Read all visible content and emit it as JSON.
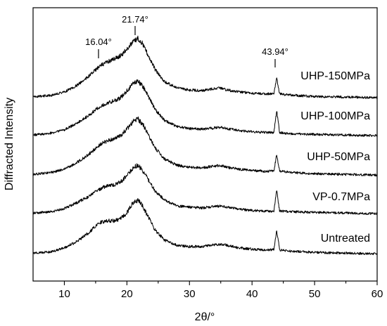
{
  "chart_data": {
    "type": "line",
    "title": "",
    "xlabel": "2θ/°",
    "ylabel": "Diffracted Intensity",
    "xlim": [
      5,
      60
    ],
    "xticks": [
      10,
      20,
      30,
      40,
      50,
      60
    ],
    "xtick_labels": [
      "10",
      "20",
      "30",
      "40",
      "50",
      "60"
    ],
    "yticks_shown": false,
    "grid": false,
    "legend": "labels placed at right end of each trace",
    "series_style": "stacked with vertical offset",
    "series": [
      {
        "name": "UHP-150MPa",
        "x": [
          5,
          8,
          10,
          12,
          14,
          15,
          16,
          17,
          18,
          19,
          20,
          21,
          21.74,
          22.5,
          23.5,
          24.5,
          26,
          28,
          30,
          32,
          34,
          35,
          36,
          38,
          40,
          42,
          43.5,
          43.94,
          44.4,
          46,
          50,
          55,
          60
        ],
        "y": [
          0.02,
          0.05,
          0.1,
          0.2,
          0.35,
          0.44,
          0.52,
          0.57,
          0.61,
          0.66,
          0.76,
          0.88,
          0.93,
          0.85,
          0.65,
          0.45,
          0.26,
          0.16,
          0.13,
          0.12,
          0.15,
          0.16,
          0.13,
          0.1,
          0.08,
          0.07,
          0.07,
          0.33,
          0.07,
          0.05,
          0.03,
          0.02,
          0.01
        ]
      },
      {
        "name": "UHP-100MPa",
        "x": [
          5,
          8,
          10,
          12,
          14,
          15,
          16,
          17,
          18,
          19,
          20,
          21,
          21.74,
          22.5,
          23.5,
          24.5,
          26,
          28,
          30,
          32,
          34,
          35,
          36,
          38,
          40,
          42,
          43.5,
          43.94,
          44.4,
          46,
          50,
          55,
          60
        ],
        "y": [
          0.02,
          0.05,
          0.1,
          0.2,
          0.33,
          0.41,
          0.48,
          0.52,
          0.55,
          0.6,
          0.7,
          0.82,
          0.86,
          0.78,
          0.6,
          0.42,
          0.25,
          0.15,
          0.12,
          0.11,
          0.13,
          0.14,
          0.12,
          0.09,
          0.07,
          0.06,
          0.06,
          0.4,
          0.06,
          0.04,
          0.03,
          0.02,
          0.01
        ]
      },
      {
        "name": "UHP-50MPa",
        "x": [
          5,
          8,
          10,
          12,
          14,
          15,
          16,
          17,
          18,
          19,
          20,
          21,
          21.74,
          22.5,
          23.5,
          24.5,
          26,
          28,
          30,
          32,
          34,
          35,
          36,
          38,
          40,
          42,
          43.5,
          43.94,
          44.4,
          46,
          50,
          55,
          60
        ],
        "y": [
          0.02,
          0.05,
          0.1,
          0.2,
          0.34,
          0.42,
          0.5,
          0.54,
          0.57,
          0.62,
          0.72,
          0.84,
          0.88,
          0.8,
          0.62,
          0.43,
          0.26,
          0.16,
          0.13,
          0.12,
          0.15,
          0.16,
          0.13,
          0.1,
          0.08,
          0.07,
          0.07,
          0.33,
          0.07,
          0.05,
          0.03,
          0.02,
          0.01
        ]
      },
      {
        "name": "VP-0.7MPa",
        "x": [
          5,
          8,
          10,
          12,
          14,
          15,
          16,
          17,
          18,
          19,
          20,
          21,
          21.74,
          22.5,
          23.5,
          24.5,
          26,
          28,
          30,
          32,
          34,
          35,
          36,
          38,
          40,
          42,
          43.5,
          43.94,
          44.4,
          46,
          50,
          55,
          60
        ],
        "y": [
          0.02,
          0.04,
          0.09,
          0.18,
          0.28,
          0.35,
          0.41,
          0.44,
          0.46,
          0.5,
          0.6,
          0.72,
          0.76,
          0.68,
          0.52,
          0.36,
          0.22,
          0.13,
          0.11,
          0.1,
          0.12,
          0.13,
          0.11,
          0.08,
          0.06,
          0.05,
          0.05,
          0.38,
          0.05,
          0.04,
          0.03,
          0.02,
          0.01
        ]
      },
      {
        "name": "Untreated",
        "x": [
          5,
          8,
          10,
          12,
          14,
          15,
          16,
          17,
          18,
          19,
          20,
          21,
          21.74,
          22.5,
          23.5,
          24.5,
          26,
          28,
          30,
          32,
          34,
          35,
          36,
          38,
          40,
          42,
          43.5,
          43.94,
          44.4,
          46,
          50,
          55,
          60
        ],
        "y": [
          0.02,
          0.04,
          0.1,
          0.2,
          0.34,
          0.44,
          0.5,
          0.52,
          0.52,
          0.55,
          0.64,
          0.8,
          0.84,
          0.75,
          0.56,
          0.38,
          0.22,
          0.14,
          0.12,
          0.12,
          0.15,
          0.16,
          0.14,
          0.1,
          0.08,
          0.07,
          0.07,
          0.38,
          0.07,
          0.05,
          0.03,
          0.02,
          0.01
        ]
      }
    ],
    "annotations": [
      {
        "text": "16.04°",
        "x": 15.6
      },
      {
        "text": "21.74°",
        "x": 21.74
      },
      {
        "text": "43.94°",
        "x": 43.94
      }
    ]
  }
}
